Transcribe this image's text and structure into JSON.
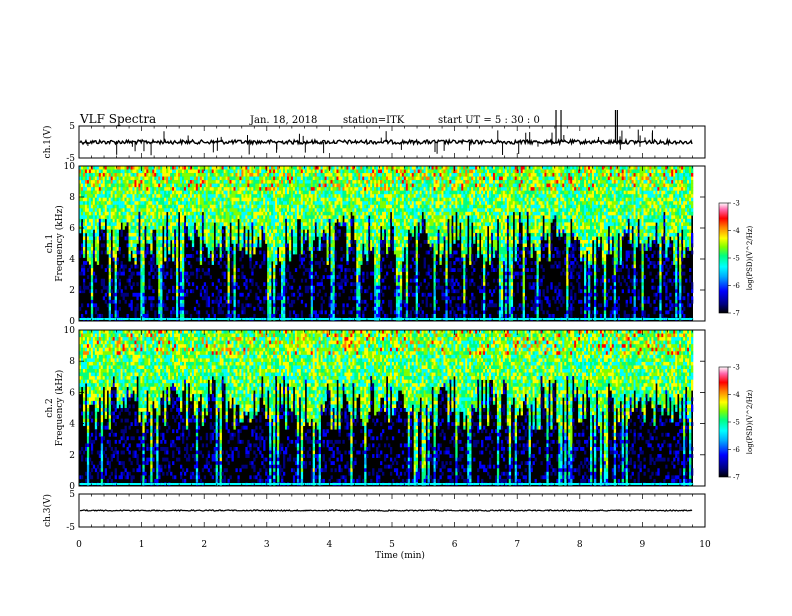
{
  "header": {
    "title": "VLF Spectra",
    "date": "Jan. 18, 2018",
    "station": "station=ITK",
    "start_ut": "start  UT  =  5 : 30 : 0"
  },
  "chart_data": [
    {
      "type": "line",
      "name": "ch1-waveform",
      "ylabel": "ch.1(V)",
      "ylim": [
        -5,
        5
      ],
      "yticks": [
        "5",
        "-5"
      ],
      "xlim": [
        0,
        10
      ],
      "baseline": 0,
      "colors": {
        "trace": "#000000"
      }
    },
    {
      "type": "heatmap",
      "name": "ch1-spectrogram",
      "ylabel": "ch.1 Frequency (kHz)",
      "ylim": [
        0,
        10
      ],
      "yticks": [
        "0",
        "2",
        "4",
        "6",
        "8",
        "10"
      ],
      "xlim": [
        0,
        10
      ],
      "colorbar": {
        "label": "log(PSD)(V^2/Hz)",
        "range": [
          -7,
          -3
        ],
        "ticks": [
          "-3",
          "-4",
          "-5",
          "-6",
          "-7"
        ]
      }
    },
    {
      "type": "heatmap",
      "name": "ch2-spectrogram",
      "ylabel": "ch.2 Frequency (kHz)",
      "ylim": [
        0,
        10
      ],
      "yticks": [
        "0",
        "2",
        "4",
        "6",
        "8",
        "10"
      ],
      "xlim": [
        0,
        10
      ],
      "colorbar": {
        "label": "log(PSD)(V^2/Hz)",
        "range": [
          -7,
          -3
        ],
        "ticks": [
          "-3",
          "-4",
          "-5",
          "-6",
          "-7"
        ]
      }
    },
    {
      "type": "line",
      "name": "ch3-waveform",
      "ylabel": "ch.3(V)",
      "ylim": [
        -5,
        5
      ],
      "yticks": [
        "5",
        "-5"
      ],
      "xlim": [
        0,
        10
      ],
      "baseline": 0,
      "colors": {
        "trace": "#000000"
      }
    }
  ],
  "xaxis": {
    "label": "Time  (min)",
    "ticks": [
      "0",
      "1",
      "2",
      "3",
      "4",
      "5",
      "6",
      "7",
      "8",
      "9",
      "10"
    ]
  },
  "colormap": [
    "#000000",
    "#000080",
    "#0000ff",
    "#00aaff",
    "#00ffff",
    "#00ff80",
    "#80ff00",
    "#ffff00",
    "#ff8000",
    "#ff0000",
    "#ff66aa",
    "#ffffff"
  ]
}
